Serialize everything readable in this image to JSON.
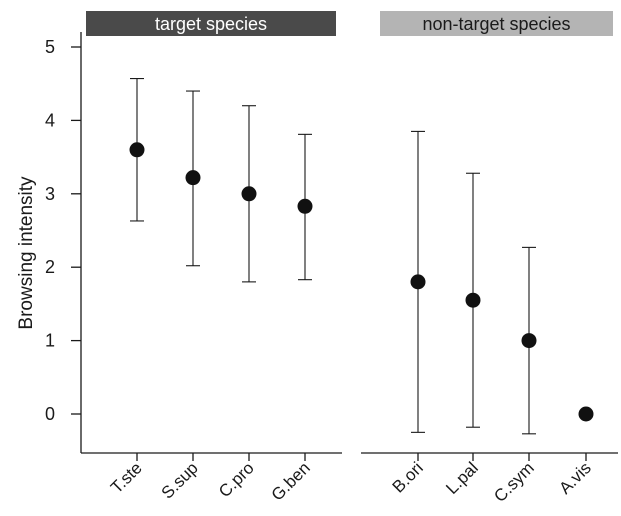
{
  "chart_data": {
    "type": "scatter",
    "ylabel": "Browsing intensity",
    "ylim": [
      -0.5,
      5
    ],
    "yticks": [
      0,
      1,
      2,
      3,
      4,
      5
    ],
    "grid": false,
    "legend": "none",
    "panels": [
      {
        "header": "target species",
        "header_color": "#4a4a4a",
        "header_text_color": "#ffffff",
        "categories": [
          "T.ste",
          "S.sup",
          "C.pro",
          "G.ben"
        ],
        "values": [
          3.6,
          3.22,
          3.0,
          2.83
        ],
        "error_low": [
          2.63,
          2.02,
          1.8,
          1.83
        ],
        "error_high": [
          4.57,
          4.4,
          4.2,
          3.81
        ]
      },
      {
        "header": "non-target species",
        "header_color": "#b4b4b4",
        "header_text_color": "#1a1a1a",
        "categories": [
          "B.ori",
          "L.pal",
          "C.sym",
          "A.vis"
        ],
        "values": [
          1.8,
          1.55,
          1.0,
          0.0
        ],
        "error_low": [
          -0.25,
          -0.18,
          -0.27,
          null
        ],
        "error_high": [
          3.85,
          3.28,
          2.27,
          null
        ]
      }
    ]
  }
}
